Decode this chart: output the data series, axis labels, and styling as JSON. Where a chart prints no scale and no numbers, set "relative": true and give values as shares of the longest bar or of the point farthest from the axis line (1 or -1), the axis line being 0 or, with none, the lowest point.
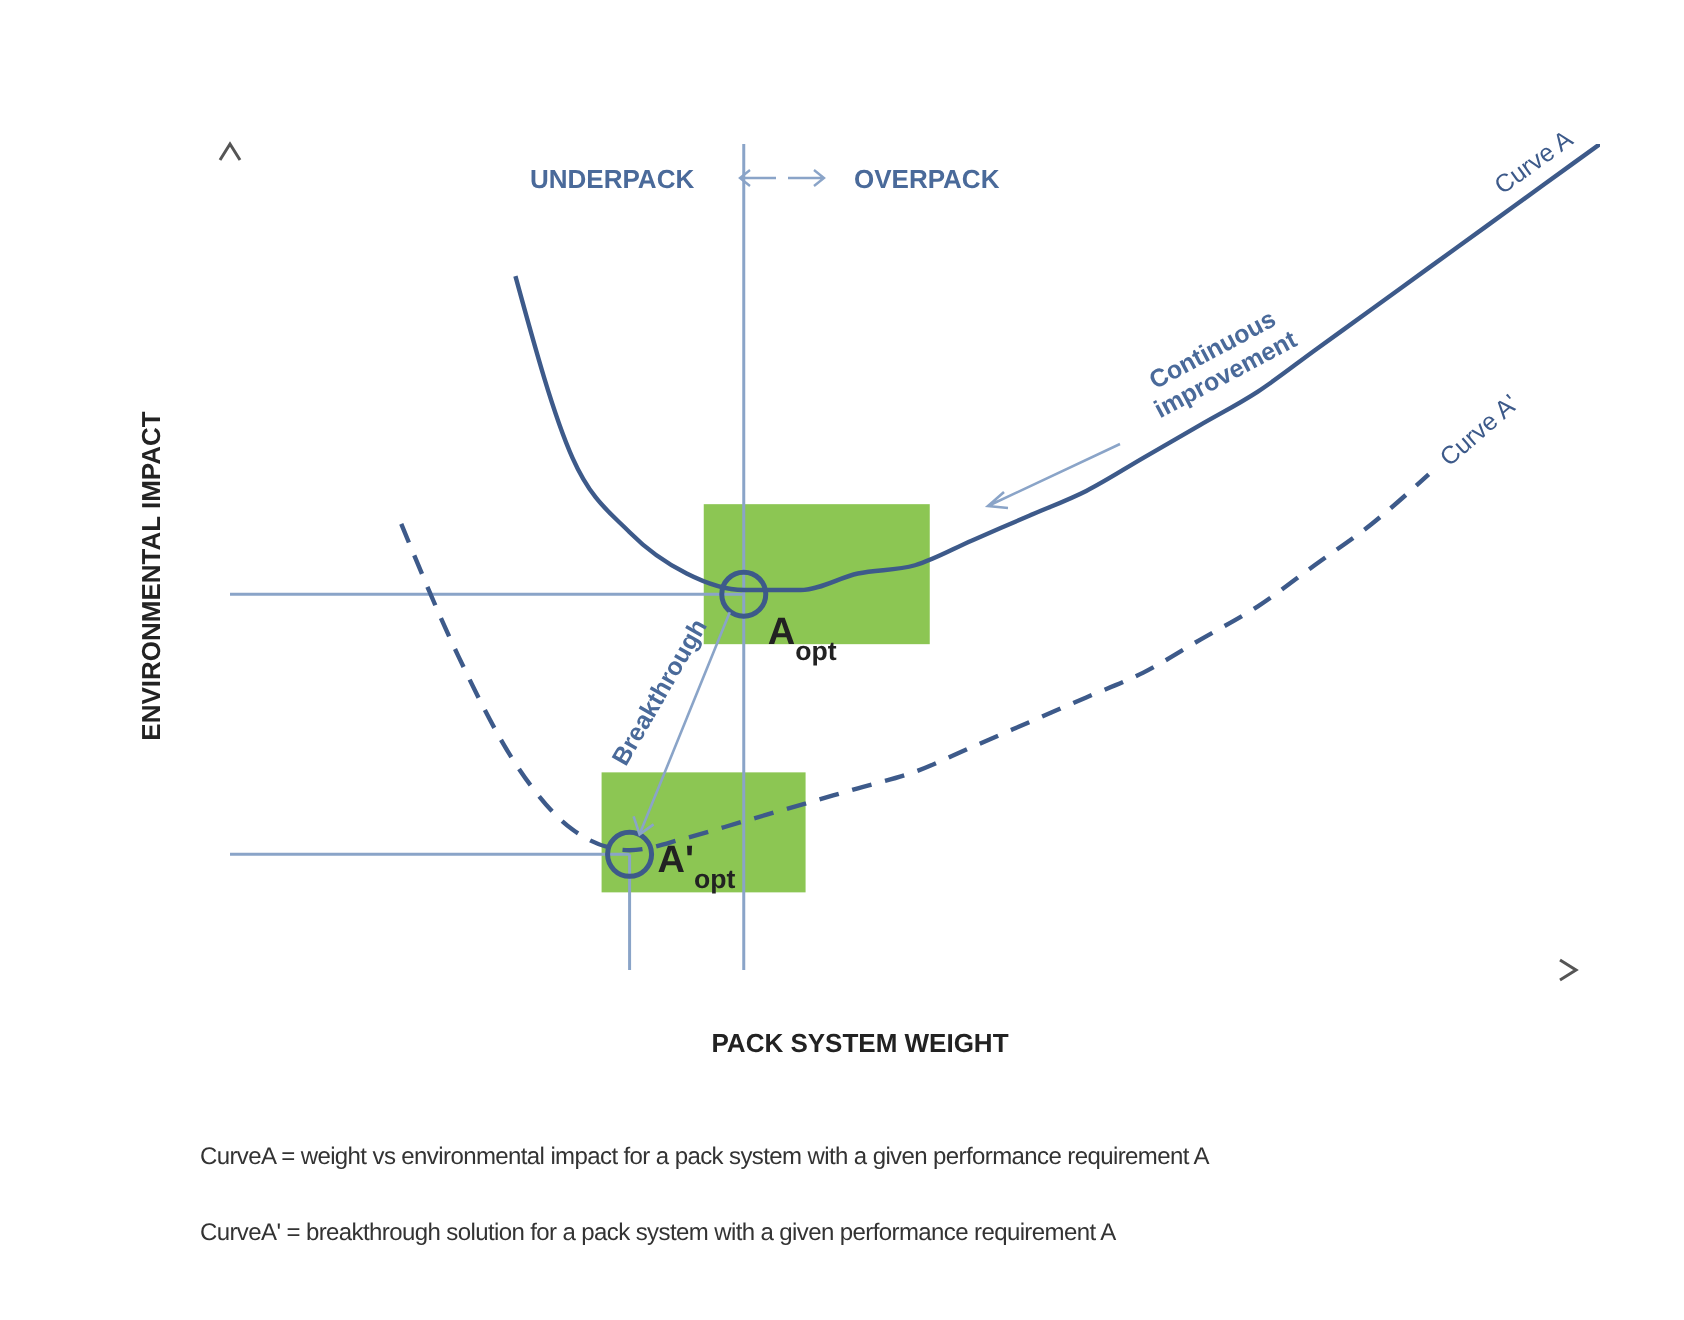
{
  "chart_data": {
    "type": "line",
    "relative": true,
    "xlabel": "PACK SYSTEM WEIGHT",
    "ylabel": "ENVIRONMENTAL IMPACT",
    "categories": [
      null,
      null,
      null,
      null,
      null,
      null,
      null,
      null,
      null,
      null,
      null,
      null,
      null,
      null,
      null,
      null,
      null,
      null,
      null,
      null,
      null,
      null,
      null,
      null,
      null
    ],
    "series": [
      {
        "name": "Curve A",
        "color": "#3d5a8a",
        "line_style": "solid",
        "values": [
          null,
          null,
          null,
          null,
          null,
          0.84,
          0.62,
          0.53,
          0.48,
          0.46,
          0.46,
          0.48,
          0.49,
          0.52,
          0.55,
          0.58,
          0.62,
          0.66,
          0.7,
          0.75,
          0.8,
          0.85,
          0.9,
          0.95,
          1
        ]
      },
      {
        "name": "Curve A'",
        "color": "#3d5a8a",
        "line_style": "dashed",
        "values": [
          null,
          null,
          null,
          0.54,
          0.38,
          0.25,
          0.17,
          0.145,
          0.16,
          0.18,
          0.2,
          0.22,
          0.24,
          0.27,
          0.3,
          0.33,
          0.36,
          0.4,
          0.44,
          0.49,
          0.54,
          0.6,
          null,
          null,
          null
        ]
      }
    ],
    "ref_lines": [
      {
        "axis": "y",
        "value": 0.455,
        "color": "#8aa4c8"
      },
      {
        "axis": "y",
        "value": 0.14,
        "color": "#8aa4c8"
      }
    ],
    "annotations": [
      "UNDERPACK",
      "OVERPACK",
      "Continuous improvement",
      "Breakthrough",
      "A$_{opt}$",
      "A'$_{opt}$",
      "CurveA = weight vs environmental impact for a pack system with a given performance requirement A",
      "CurveA' = breakthrough solution for a pack system with a given performance requirement A"
    ],
    "marker": "none"
  }
}
